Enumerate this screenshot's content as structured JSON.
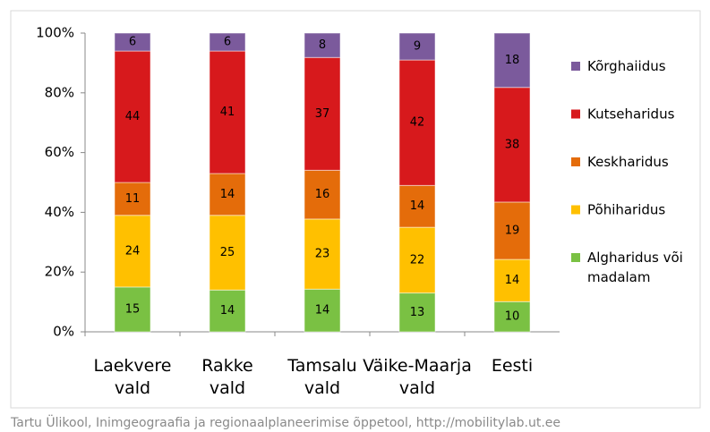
{
  "chart_data": {
    "type": "bar",
    "stacking": "percent",
    "categories": [
      "Laekvere vald",
      "Rakke vald",
      "Tamsalu vald",
      "Väike-Maarja vald",
      "Eesti"
    ],
    "series": [
      {
        "name": "Algharidus või madalam",
        "color": "#7ac143",
        "values": [
          15,
          14,
          14,
          13,
          10
        ]
      },
      {
        "name": "Põhiharidus",
        "color": "#ffc000",
        "values": [
          24,
          25,
          23,
          22,
          14
        ]
      },
      {
        "name": "Keskharidus",
        "color": "#e46c0a",
        "values": [
          11,
          14,
          16,
          14,
          19
        ]
      },
      {
        "name": "Kutseharidus",
        "color": "#d7191c",
        "values": [
          44,
          41,
          37,
          42,
          38
        ]
      },
      {
        "name": "Kõrghaiidus",
        "color": "#7b5a9c",
        "values": [
          6,
          6,
          8,
          9,
          18
        ]
      }
    ],
    "ylim": [
      0,
      100
    ],
    "yticks": [
      {
        "value": 0,
        "label": "0%"
      },
      {
        "value": 20,
        "label": "20%"
      },
      {
        "value": 40,
        "label": "40%"
      },
      {
        "value": 60,
        "label": "60%"
      },
      {
        "value": 80,
        "label": "80%"
      },
      {
        "value": 100,
        "label": "100%"
      }
    ],
    "legend": "right",
    "source": "Tartu Ülikool, Inimgeograafia ja regionaalplaneerimise õppetool, http://mobilitylab.ut.ee"
  }
}
